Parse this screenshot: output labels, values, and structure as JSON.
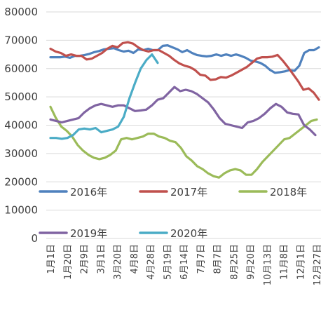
{
  "chart_data": {
    "type": "line",
    "title": "",
    "xlabel": "",
    "ylabel": "",
    "ylim": [
      0,
      80000
    ],
    "yticks": [
      0,
      10000,
      20000,
      30000,
      40000,
      50000,
      60000,
      70000,
      80000
    ],
    "x_tick_labels": [
      "1月1日",
      "1月20日",
      "2月9日",
      "3月1日",
      "3月20日",
      "4月8日",
      "4月28日",
      "5月19日",
      "6月14日",
      "7月7日",
      "8月7日",
      "8月25日",
      "9月20日",
      "10月13日",
      "11月8日",
      "12月1日",
      "12月27日"
    ],
    "grid": true,
    "legend_position": "inside, two rows",
    "series": [
      {
        "name": "2016年",
        "color": "#4f81bd",
        "values": [
          64000,
          64000,
          64000,
          64200,
          63800,
          64500,
          64500,
          64800,
          65200,
          65800,
          66200,
          66800,
          67000,
          67200,
          66500,
          66000,
          66300,
          65500,
          66800,
          66500,
          67000,
          66500,
          66500,
          68000,
          68200,
          67500,
          66800,
          65800,
          66500,
          65500,
          64800,
          64500,
          64300,
          64500,
          65000,
          64500,
          65000,
          64500,
          65000,
          64500,
          63800,
          62800,
          62500,
          62000,
          61000,
          59500,
          58500,
          58700,
          59000,
          59500,
          59200,
          61000,
          65500,
          66500,
          66500,
          67500
        ]
      },
      {
        "name": "2017年",
        "color": "#c0504d",
        "values": [
          67000,
          66000,
          65500,
          64500,
          65000,
          64500,
          64500,
          63200,
          63500,
          64500,
          65500,
          67000,
          68000,
          67500,
          69000,
          69300,
          68800,
          67500,
          66500,
          66000,
          66500,
          66500,
          65500,
          64500,
          63000,
          61800,
          61000,
          60500,
          59500,
          57800,
          57500,
          56000,
          56200,
          57000,
          56800,
          57500,
          58500,
          59500,
          60500,
          62000,
          63500,
          64000,
          64000,
          64200,
          64800,
          62800,
          60500,
          58000,
          55500,
          52500,
          53000,
          51500,
          49000
        ]
      },
      {
        "name": "2018年",
        "color": "#9bbb59",
        "values": [
          46500,
          42500,
          39500,
          38000,
          36000,
          33000,
          31000,
          29500,
          28500,
          28000,
          28500,
          29500,
          31000,
          35000,
          35500,
          35000,
          35500,
          36000,
          37000,
          37000,
          36000,
          35500,
          34500,
          34000,
          32000,
          29000,
          27500,
          25500,
          24500,
          23000,
          22000,
          21500,
          23000,
          24000,
          24500,
          24000,
          22500,
          22500,
          24500,
          27000,
          29000,
          31000,
          33000,
          35000,
          35500,
          37000,
          38500,
          40000,
          41500,
          42000
        ]
      },
      {
        "name": "2019年",
        "color": "#8064a2",
        "values": [
          42000,
          41500,
          41000,
          41500,
          42000,
          42500,
          44500,
          46000,
          47000,
          47500,
          47000,
          46500,
          47000,
          47000,
          46000,
          45000,
          45200,
          45500,
          47000,
          49000,
          49500,
          51500,
          53500,
          52000,
          52500,
          52000,
          51000,
          49500,
          48000,
          45500,
          42500,
          40500,
          40000,
          39500,
          39000,
          41000,
          41500,
          42500,
          44000,
          46000,
          47500,
          46500,
          44500,
          44000,
          43800,
          40000,
          38500,
          36500
        ]
      },
      {
        "name": "2020年",
        "color": "#4bacc6",
        "values": [
          35500,
          35500,
          35200,
          35500,
          36500,
          38500,
          38800,
          38500,
          39000,
          37500,
          38000,
          38500,
          39500,
          43000,
          49500,
          55000,
          60000,
          63000,
          65000,
          62000
        ]
      }
    ]
  }
}
